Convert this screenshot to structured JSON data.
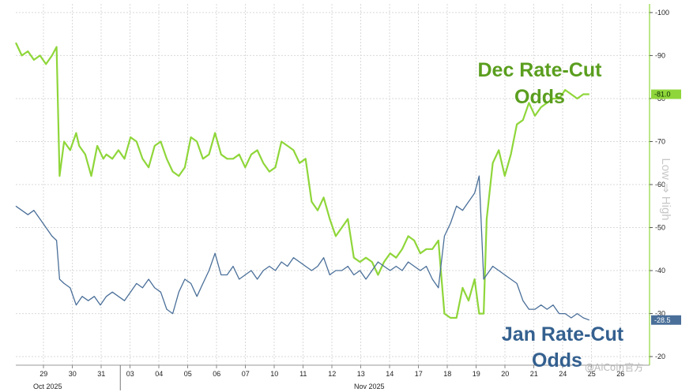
{
  "chart_data": {
    "type": "line",
    "x": [
      "29",
      "30",
      "31",
      "03",
      "04",
      "05",
      "06",
      "07",
      "10",
      "11",
      "12",
      "13",
      "14",
      "17",
      "18",
      "19",
      "20",
      "21",
      "24",
      "25",
      "26"
    ],
    "x_month_labels": [
      "Oct 2025",
      "Nov 2025"
    ],
    "ylim": [
      18,
      102
    ],
    "yticks": [
      20,
      30,
      40,
      50,
      60,
      70,
      80,
      90,
      100
    ],
    "grid": true,
    "colors": {
      "dec": "#8fd63a",
      "jan": "#4a6f99",
      "dec_badge": "#8fd63a",
      "jan_badge": "#4a6f99"
    },
    "series": [
      {
        "name": "Dec Rate-Cut Odds",
        "last": "81.0",
        "points": [
          [
            0,
            93
          ],
          [
            0.2,
            90
          ],
          [
            0.4,
            91
          ],
          [
            0.6,
            89
          ],
          [
            0.8,
            90
          ],
          [
            1.0,
            88
          ],
          [
            1.2,
            90
          ],
          [
            1.35,
            92
          ],
          [
            1.45,
            62
          ],
          [
            1.6,
            70
          ],
          [
            1.8,
            68
          ],
          [
            2.0,
            72
          ],
          [
            2.1,
            69
          ],
          [
            2.3,
            67
          ],
          [
            2.5,
            62
          ],
          [
            2.7,
            69
          ],
          [
            2.9,
            66
          ],
          [
            3.0,
            67
          ],
          [
            3.2,
            66
          ],
          [
            3.4,
            68
          ],
          [
            3.6,
            66
          ],
          [
            3.8,
            71
          ],
          [
            4.0,
            70
          ],
          [
            4.2,
            66
          ],
          [
            4.4,
            64
          ],
          [
            4.6,
            69
          ],
          [
            4.8,
            70
          ],
          [
            5.0,
            66
          ],
          [
            5.2,
            63
          ],
          [
            5.4,
            62
          ],
          [
            5.6,
            64
          ],
          [
            5.8,
            71
          ],
          [
            6.0,
            70
          ],
          [
            6.2,
            66
          ],
          [
            6.4,
            67
          ],
          [
            6.6,
            72
          ],
          [
            6.8,
            67
          ],
          [
            7.0,
            66
          ],
          [
            7.2,
            66
          ],
          [
            7.4,
            67
          ],
          [
            7.6,
            64
          ],
          [
            7.8,
            67
          ],
          [
            8.0,
            68
          ],
          [
            8.2,
            65
          ],
          [
            8.4,
            63
          ],
          [
            8.6,
            64
          ],
          [
            8.8,
            70
          ],
          [
            9.0,
            69
          ],
          [
            9.2,
            68
          ],
          [
            9.4,
            65
          ],
          [
            9.6,
            66
          ],
          [
            9.8,
            56
          ],
          [
            10.0,
            54
          ],
          [
            10.2,
            57
          ],
          [
            10.4,
            52
          ],
          [
            10.6,
            48
          ],
          [
            10.8,
            50
          ],
          [
            11.0,
            52
          ],
          [
            11.2,
            43
          ],
          [
            11.4,
            42
          ],
          [
            11.6,
            43
          ],
          [
            11.8,
            42
          ],
          [
            12.0,
            39
          ],
          [
            12.2,
            42
          ],
          [
            12.4,
            44
          ],
          [
            12.6,
            43
          ],
          [
            12.8,
            45
          ],
          [
            13.0,
            48
          ],
          [
            13.2,
            47
          ],
          [
            13.4,
            44
          ],
          [
            13.6,
            45
          ],
          [
            13.8,
            45
          ],
          [
            14.0,
            47
          ],
          [
            14.2,
            30
          ],
          [
            14.4,
            29
          ],
          [
            14.6,
            29
          ],
          [
            14.8,
            36
          ],
          [
            15.0,
            33
          ],
          [
            15.2,
            38
          ],
          [
            15.35,
            30
          ],
          [
            15.5,
            30
          ],
          [
            15.6,
            52
          ],
          [
            15.8,
            65
          ],
          [
            16.0,
            68
          ],
          [
            16.2,
            62
          ],
          [
            16.4,
            67
          ],
          [
            16.6,
            74
          ],
          [
            16.8,
            75
          ],
          [
            17.0,
            79
          ],
          [
            17.2,
            76
          ],
          [
            17.4,
            78
          ],
          [
            17.6,
            79
          ],
          [
            17.8,
            80
          ],
          [
            18.0,
            80
          ],
          [
            18.2,
            82
          ],
          [
            18.4,
            81
          ],
          [
            18.6,
            80
          ],
          [
            18.8,
            81
          ],
          [
            19.0,
            81
          ]
        ]
      },
      {
        "name": "Jan Rate-Cut Odds",
        "last": "28.5",
        "points": [
          [
            0,
            55
          ],
          [
            0.2,
            54
          ],
          [
            0.4,
            53
          ],
          [
            0.6,
            54
          ],
          [
            0.8,
            52
          ],
          [
            1.0,
            50
          ],
          [
            1.2,
            48
          ],
          [
            1.35,
            47
          ],
          [
            1.45,
            38
          ],
          [
            1.6,
            37
          ],
          [
            1.8,
            36
          ],
          [
            2.0,
            32
          ],
          [
            2.2,
            34
          ],
          [
            2.4,
            33
          ],
          [
            2.6,
            34
          ],
          [
            2.8,
            32
          ],
          [
            3.0,
            34
          ],
          [
            3.2,
            35
          ],
          [
            3.4,
            34
          ],
          [
            3.6,
            33
          ],
          [
            3.8,
            35
          ],
          [
            4.0,
            37
          ],
          [
            4.2,
            36
          ],
          [
            4.4,
            38
          ],
          [
            4.6,
            36
          ],
          [
            4.8,
            35
          ],
          [
            5.0,
            31
          ],
          [
            5.2,
            30
          ],
          [
            5.4,
            35
          ],
          [
            5.6,
            38
          ],
          [
            5.8,
            37
          ],
          [
            6.0,
            34
          ],
          [
            6.2,
            37
          ],
          [
            6.4,
            40
          ],
          [
            6.6,
            44
          ],
          [
            6.8,
            39
          ],
          [
            7.0,
            39
          ],
          [
            7.2,
            41
          ],
          [
            7.4,
            38
          ],
          [
            7.6,
            39
          ],
          [
            7.8,
            40
          ],
          [
            8.0,
            38
          ],
          [
            8.2,
            40
          ],
          [
            8.4,
            41
          ],
          [
            8.6,
            40
          ],
          [
            8.8,
            42
          ],
          [
            9.0,
            41
          ],
          [
            9.2,
            43
          ],
          [
            9.4,
            42
          ],
          [
            9.6,
            41
          ],
          [
            9.8,
            40
          ],
          [
            10.0,
            41
          ],
          [
            10.2,
            43
          ],
          [
            10.4,
            39
          ],
          [
            10.6,
            40
          ],
          [
            10.8,
            40
          ],
          [
            11.0,
            41
          ],
          [
            11.2,
            39
          ],
          [
            11.4,
            40
          ],
          [
            11.6,
            38
          ],
          [
            11.8,
            40
          ],
          [
            12.0,
            42
          ],
          [
            12.2,
            41
          ],
          [
            12.4,
            40
          ],
          [
            12.6,
            41
          ],
          [
            12.8,
            40
          ],
          [
            13.0,
            42
          ],
          [
            13.2,
            41
          ],
          [
            13.4,
            40
          ],
          [
            13.6,
            41
          ],
          [
            13.8,
            38
          ],
          [
            14.0,
            36
          ],
          [
            14.2,
            48
          ],
          [
            14.4,
            51
          ],
          [
            14.6,
            55
          ],
          [
            14.8,
            54
          ],
          [
            15.0,
            56
          ],
          [
            15.2,
            58
          ],
          [
            15.35,
            62
          ],
          [
            15.5,
            38
          ],
          [
            15.6,
            39
          ],
          [
            15.8,
            41
          ],
          [
            16.0,
            40
          ],
          [
            16.2,
            39
          ],
          [
            16.4,
            38
          ],
          [
            16.6,
            37
          ],
          [
            16.8,
            33
          ],
          [
            17.0,
            31
          ],
          [
            17.2,
            31
          ],
          [
            17.4,
            32
          ],
          [
            17.6,
            31
          ],
          [
            17.8,
            32
          ],
          [
            18.0,
            30
          ],
          [
            18.2,
            30
          ],
          [
            18.4,
            29
          ],
          [
            18.6,
            30
          ],
          [
            18.8,
            29
          ],
          [
            19.0,
            28.5
          ]
        ]
      }
    ],
    "annotations": {
      "dec_line1": "Dec Rate-Cut",
      "dec_line2": "Odds",
      "jan_line1": "Jan Rate-Cut",
      "jan_line2": "Odds"
    },
    "side_label": "Low ⇒ High"
  },
  "watermark": "@AiCoin官方"
}
